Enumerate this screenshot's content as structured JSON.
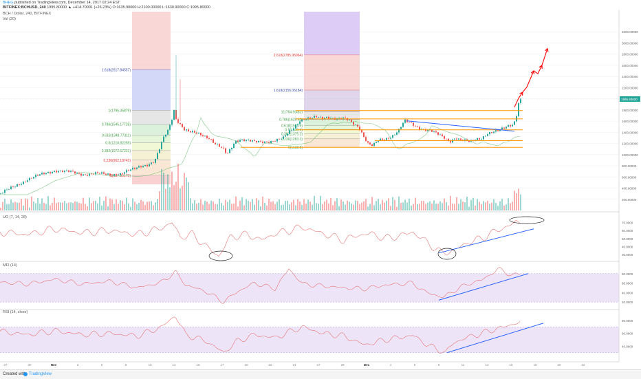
{
  "header": {
    "user": "BHEG",
    "published": "published on TradingView.com, December 14, 2017 02:24 EST",
    "symbol": "BITFINEX:BCHUSD, 240",
    "quote": "1995.80000 ▲ +414.70001 (+26.23%) O:1635.90000 H:2100.00000 L:1630.90000 C:1995.80000",
    "pane_title": "BCH / Dollar, 240, BITFINEX",
    "vol_title": "Vol (20)"
  },
  "footer": {
    "created_with": "Created with",
    "brand": "TradingView"
  },
  "colors": {
    "up": "#26a69a",
    "down": "#ef5350",
    "orange": "#ff9800",
    "blue": "#2962ff",
    "red_arrow": "#ff0000",
    "osc_line": "#e57373",
    "band": "#ede4f7",
    "fib_red": "#f7c6c6",
    "fib_purple": "#d9c8f5",
    "fib_blue": "#cfd4f7",
    "grey": "#e6e6e6"
  },
  "chart_data": [
    {
      "type": "candlestick",
      "title": "BCH / Dollar, 240, BITFINEX",
      "ylim": [
        0,
        3400
      ],
      "yticks": [
        200,
        400,
        600,
        800,
        1000,
        1200,
        1400,
        1600,
        1800,
        2000,
        2200,
        2400,
        2600,
        2800,
        3000,
        3200
      ],
      "ytick_labels": [
        "200.00000",
        "400.00000",
        "600.00000",
        "800.00000",
        "1000.00000",
        "1200.00000",
        "1400.00000",
        "1600.00000",
        "1800.00000",
        "2000.00000",
        "2200.00000",
        "2400.00000",
        "2600.00000",
        "2800.00000",
        "3000.00000",
        "3200.00000"
      ],
      "x_axis": [
        "27",
        "30",
        "Nov",
        "3",
        "6",
        "8",
        "10",
        "13",
        "15",
        "17",
        "20",
        "22",
        "24",
        "27",
        "29",
        "Dec",
        "4",
        "6",
        "8",
        "11",
        "13",
        "15",
        "18",
        "20",
        "22"
      ],
      "last_price_label": "1995.80000",
      "anchors": [
        [
          0,
          300
        ],
        [
          20,
          420
        ],
        [
          40,
          560
        ],
        [
          60,
          640
        ],
        [
          80,
          720
        ],
        [
          100,
          690
        ],
        [
          120,
          650
        ],
        [
          140,
          660
        ],
        [
          160,
          640
        ],
        [
          175,
          660
        ],
        [
          185,
          700
        ],
        [
          195,
          740
        ],
        [
          205,
          800
        ],
        [
          215,
          830
        ],
        [
          225,
          880
        ],
        [
          232,
          1100
        ],
        [
          238,
          1300
        ],
        [
          245,
          1450
        ],
        [
          250,
          1650
        ],
        [
          253,
          1800
        ],
        [
          256,
          1650
        ],
        [
          262,
          1550
        ],
        [
          268,
          1450
        ],
        [
          275,
          1400
        ],
        [
          285,
          1380
        ],
        [
          295,
          1350
        ],
        [
          305,
          1300
        ],
        [
          312,
          1200
        ],
        [
          318,
          1150
        ],
        [
          325,
          1080
        ],
        [
          330,
          1000
        ],
        [
          336,
          1120
        ],
        [
          342,
          1250
        ],
        [
          350,
          1280
        ],
        [
          360,
          1250
        ],
        [
          370,
          1220
        ],
        [
          380,
          1230
        ],
        [
          392,
          1240
        ],
        [
          402,
          1260
        ],
        [
          412,
          1290
        ],
        [
          420,
          1400
        ],
        [
          428,
          1500
        ],
        [
          436,
          1620
        ],
        [
          444,
          1650
        ],
        [
          452,
          1640
        ],
        [
          460,
          1670
        ],
        [
          468,
          1650
        ],
        [
          476,
          1680
        ],
        [
          484,
          1660
        ],
        [
          492,
          1640
        ],
        [
          500,
          1640
        ],
        [
          508,
          1600
        ],
        [
          516,
          1540
        ],
        [
          522,
          1500
        ],
        [
          528,
          1350
        ],
        [
          535,
          1200
        ],
        [
          542,
          1150
        ],
        [
          550,
          1250
        ],
        [
          560,
          1280
        ],
        [
          570,
          1340
        ],
        [
          580,
          1440
        ],
        [
          588,
          1600
        ],
        [
          596,
          1560
        ],
        [
          606,
          1500
        ],
        [
          616,
          1460
        ],
        [
          626,
          1430
        ],
        [
          636,
          1360
        ],
        [
          646,
          1300
        ],
        [
          654,
          1240
        ],
        [
          662,
          1310
        ],
        [
          668,
          1270
        ],
        [
          676,
          1240
        ],
        [
          684,
          1220
        ],
        [
          692,
          1280
        ],
        [
          700,
          1300
        ],
        [
          708,
          1380
        ],
        [
          716,
          1400
        ],
        [
          724,
          1420
        ],
        [
          732,
          1470
        ],
        [
          740,
          1530
        ],
        [
          746,
          1550
        ],
        [
          750,
          1650
        ],
        [
          755,
          1995
        ]
      ],
      "fibonacci_left": [
        {
          "label": "1.618(2517.84557)",
          "value": 2517.85
        },
        {
          "label": "1(1795.35879)",
          "value": 1795.36
        },
        {
          "label": "0.786(1545.17728)",
          "value": 1545.18
        },
        {
          "label": "0.618(1348.77311)",
          "value": 1348.77
        },
        {
          "label": "0.5(1210.82259)",
          "value": 1210.82
        },
        {
          "label": "0.382(1072.67231)",
          "value": 1072.67
        },
        {
          "label": "0.236(902.18743)",
          "value": 902.19
        },
        {
          "label": "0(627.35173)",
          "value": 627.35
        }
      ],
      "fibonacci_right": [
        {
          "label": "2.618(2785.95964)",
          "value": 2785.96
        },
        {
          "label": "1.618(2156.05184)",
          "value": 2156.05
        },
        {
          "label": "1(1764.9(482)",
          "value": 1764.95
        },
        {
          "label": "0.786(1629.43)",
          "value": 1629.43
        },
        {
          "label": "0.618(1523.5)",
          "value": 1523.5
        },
        {
          "label": "0.5(1449.4)",
          "value": 1449.4
        },
        {
          "label": "0.382(1375.2)",
          "value": 1375.2
        },
        {
          "label": "0.236(1283.3)",
          "value": 1283.3
        },
        {
          "label": "0(1132.8)",
          "value": 1132.8
        }
      ],
      "support_resistance": [
        1790,
        1640,
        1445,
        1250,
        1130
      ],
      "arrow_path": [
        [
          748,
          1850
        ],
        [
          754,
          2010
        ],
        [
          760,
          2120
        ],
        [
          766,
          2210
        ],
        [
          776,
          2500
        ],
        [
          782,
          2450
        ],
        [
          788,
          2600
        ],
        [
          796,
          2900
        ]
      ]
    },
    {
      "type": "line",
      "title": "UO (7, 14, 28)",
      "ylim": [
        25,
        78
      ],
      "yticks": [
        30,
        40,
        50,
        60,
        70
      ],
      "ytick_labels": [
        "30.0000",
        "40.0000",
        "50.0000",
        "60.0000",
        "70.0000"
      ],
      "anchors": [
        [
          0,
          58
        ],
        [
          40,
          55
        ],
        [
          80,
          62
        ],
        [
          120,
          57
        ],
        [
          160,
          60
        ],
        [
          200,
          55
        ],
        [
          235,
          63
        ],
        [
          250,
          70
        ],
        [
          262,
          52
        ],
        [
          280,
          55
        ],
        [
          300,
          40
        ],
        [
          318,
          28
        ],
        [
          335,
          52
        ],
        [
          360,
          55
        ],
        [
          380,
          48
        ],
        [
          400,
          56
        ],
        [
          420,
          60
        ],
        [
          440,
          64
        ],
        [
          470,
          56
        ],
        [
          500,
          48
        ],
        [
          520,
          54
        ],
        [
          540,
          56
        ],
        [
          560,
          50
        ],
        [
          580,
          53
        ],
        [
          600,
          58
        ],
        [
          620,
          46
        ],
        [
          642,
          32
        ],
        [
          660,
          35
        ],
        [
          680,
          45
        ],
        [
          700,
          50
        ],
        [
          720,
          59
        ],
        [
          740,
          66
        ],
        [
          750,
          70
        ]
      ],
      "trendline": [
        [
          638,
          32
        ],
        [
          776,
          62
        ]
      ]
    },
    {
      "type": "line",
      "title": "MFI (14)",
      "ylim": [
        10,
        100
      ],
      "band": [
        20,
        80
      ],
      "yticks": [
        20,
        40,
        60,
        80
      ],
      "ytick_labels": [
        "20.0000",
        "40.0000",
        "60.0000",
        "80.0000"
      ],
      "anchors": [
        [
          0,
          62
        ],
        [
          40,
          58
        ],
        [
          80,
          68
        ],
        [
          120,
          58
        ],
        [
          160,
          64
        ],
        [
          200,
          50
        ],
        [
          235,
          62
        ],
        [
          255,
          84
        ],
        [
          270,
          56
        ],
        [
          300,
          42
        ],
        [
          325,
          20
        ],
        [
          345,
          42
        ],
        [
          370,
          60
        ],
        [
          400,
          48
        ],
        [
          420,
          90
        ],
        [
          440,
          58
        ],
        [
          470,
          54
        ],
        [
          500,
          50
        ],
        [
          530,
          48
        ],
        [
          560,
          56
        ],
        [
          600,
          60
        ],
        [
          620,
          40
        ],
        [
          645,
          30
        ],
        [
          660,
          44
        ],
        [
          680,
          58
        ],
        [
          700,
          66
        ],
        [
          725,
          90
        ],
        [
          745,
          76
        ],
        [
          760,
          80
        ]
      ],
      "trendline": [
        [
          638,
          24
        ],
        [
          768,
          80
        ]
      ]
    },
    {
      "type": "line",
      "title": "RSI (14, close)",
      "ylim": [
        20,
        93
      ],
      "band": [
        30,
        70
      ],
      "yticks": [
        40,
        60,
        80
      ],
      "ytick_labels": [
        "40.0000",
        "60.0000",
        "80.0000"
      ],
      "anchors": [
        [
          0,
          63
        ],
        [
          40,
          58
        ],
        [
          80,
          64
        ],
        [
          120,
          58
        ],
        [
          160,
          60
        ],
        [
          200,
          56
        ],
        [
          235,
          70
        ],
        [
          255,
          88
        ],
        [
          270,
          58
        ],
        [
          300,
          48
        ],
        [
          325,
          30
        ],
        [
          345,
          48
        ],
        [
          370,
          58
        ],
        [
          400,
          53
        ],
        [
          420,
          62
        ],
        [
          440,
          70
        ],
        [
          470,
          60
        ],
        [
          500,
          56
        ],
        [
          530,
          42
        ],
        [
          560,
          50
        ],
        [
          600,
          57
        ],
        [
          625,
          40
        ],
        [
          648,
          30
        ],
        [
          660,
          46
        ],
        [
          680,
          54
        ],
        [
          700,
          60
        ],
        [
          725,
          68
        ],
        [
          740,
          72
        ],
        [
          750,
          77
        ]
      ],
      "trendline": [
        [
          650,
          30
        ],
        [
          790,
          76
        ]
      ]
    }
  ]
}
